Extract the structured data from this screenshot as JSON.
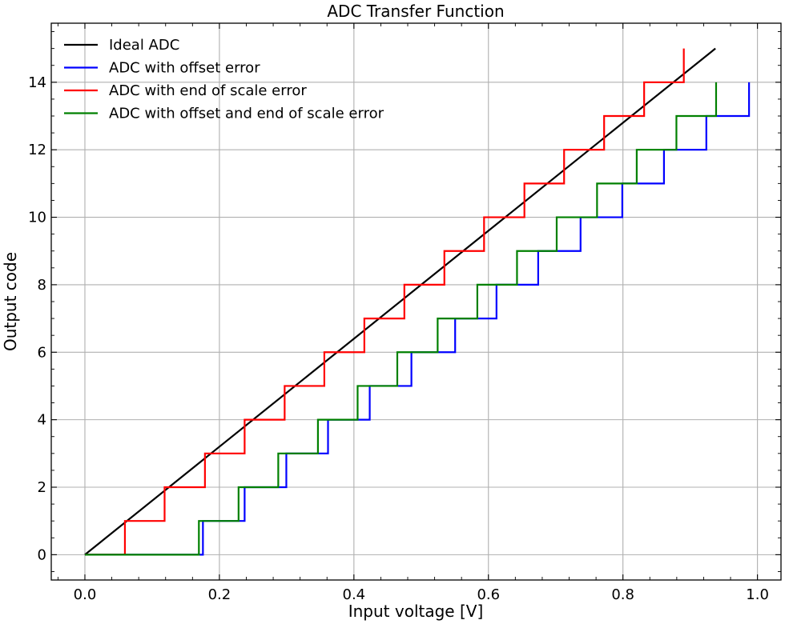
{
  "chart_data": {
    "type": "line",
    "title": "ADC Transfer Function",
    "xlabel": "Input voltage [V]",
    "ylabel": "Output code",
    "xlim": [
      -0.05,
      1.035
    ],
    "ylim": [
      -0.75,
      15.75
    ],
    "grid": true,
    "legend_position": "top-left",
    "x_ticks": [
      0.0,
      0.2,
      0.4,
      0.6,
      0.8,
      1.0
    ],
    "x_tick_labels": [
      "0.0",
      "0.2",
      "0.4",
      "0.6",
      "0.8",
      "1.0"
    ],
    "y_ticks": [
      0,
      2,
      4,
      6,
      8,
      10,
      12,
      14
    ],
    "y_tick_labels": [
      "0",
      "2",
      "4",
      "6",
      "8",
      "10",
      "12",
      "14"
    ],
    "series": [
      {
        "name": "Ideal ADC",
        "color": "#000000",
        "step": false,
        "x": [
          0.0,
          0.9375
        ],
        "y": [
          0,
          15
        ]
      },
      {
        "name": "ADC with offset error",
        "color": "#0000ff",
        "step": true,
        "x": [
          0.0,
          0.1755,
          0.2375,
          0.2995,
          0.3615,
          0.4235,
          0.4855,
          0.5505,
          0.612,
          0.674,
          0.737,
          0.799,
          0.861,
          0.924,
          0.9875
        ],
        "y": [
          0,
          1,
          2,
          3,
          4,
          5,
          6,
          7,
          8,
          9,
          10,
          11,
          12,
          13,
          14
        ]
      },
      {
        "name": "ADC with end of scale error",
        "color": "#ff0000",
        "step": true,
        "x": [
          0.0,
          0.0595,
          0.1185,
          0.1785,
          0.2375,
          0.297,
          0.356,
          0.4155,
          0.475,
          0.5345,
          0.5935,
          0.6535,
          0.7125,
          0.772,
          0.8315,
          0.8905
        ],
        "y": [
          0,
          1,
          2,
          3,
          4,
          5,
          6,
          7,
          8,
          9,
          10,
          11,
          12,
          13,
          14,
          15
        ]
      },
      {
        "name": "ADC with offset and end of scale error",
        "color": "#008000",
        "step": true,
        "x": [
          0.0,
          0.1695,
          0.2285,
          0.2875,
          0.3465,
          0.4055,
          0.4645,
          0.5245,
          0.5835,
          0.6425,
          0.7015,
          0.7615,
          0.8205,
          0.8795,
          0.9385
        ],
        "y": [
          0,
          1,
          2,
          3,
          4,
          5,
          6,
          7,
          8,
          9,
          10,
          11,
          12,
          13,
          14
        ]
      }
    ]
  }
}
